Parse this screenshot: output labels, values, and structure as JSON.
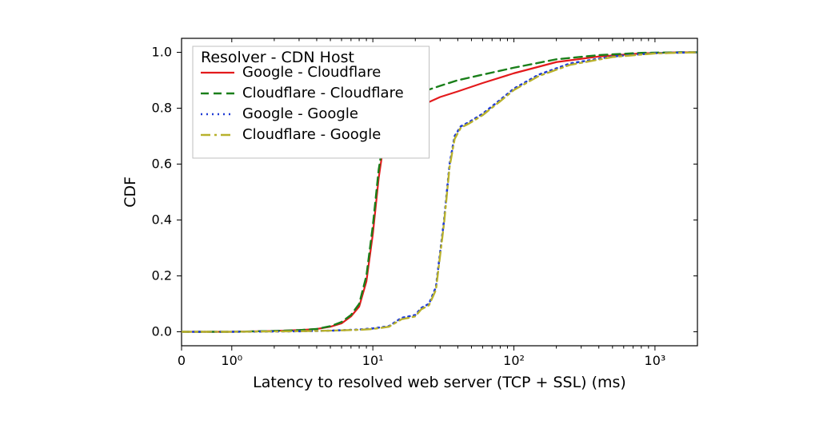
{
  "chart": {
    "type": "line-cdf",
    "background_color": "#ffffff",
    "plot_border_color": "#000000",
    "xaxis": {
      "label": "Latency to resolved web server (TCP + SSL) (ms)",
      "scale": "log",
      "lin_portion_end": 0.7,
      "log_min": 0.7,
      "log_max": 2000,
      "label_fontsize": 19,
      "tick_fontsize": 16,
      "major_ticks": [
        {
          "v": 0,
          "label": "0",
          "mode": "lin"
        },
        {
          "v": 1,
          "label": "10⁰",
          "mode": "log"
        },
        {
          "v": 10,
          "label": "10¹",
          "mode": "log"
        },
        {
          "v": 100,
          "label": "10²",
          "mode": "log"
        },
        {
          "v": 1000,
          "label": "10³",
          "mode": "log"
        }
      ],
      "minor_ticks_log": [
        2,
        3,
        4,
        5,
        6,
        7,
        8,
        9,
        20,
        30,
        40,
        50,
        60,
        70,
        80,
        90,
        200,
        300,
        400,
        500,
        600,
        700,
        800,
        900,
        2000
      ]
    },
    "yaxis": {
      "label": "CDF",
      "min": -0.05,
      "max": 1.05,
      "ticks": [
        0.0,
        0.2,
        0.4,
        0.6,
        0.8,
        1.0
      ],
      "tick_labels": [
        "0.0",
        "0.2",
        "0.4",
        "0.6",
        "0.8",
        "1.0"
      ],
      "label_fontsize": 19,
      "tick_fontsize": 16
    },
    "legend": {
      "title": "Resolver - CDN Host",
      "title_fontsize": 19,
      "item_fontsize": 18,
      "position": "upper-left",
      "frame_color": "#bfbfbf",
      "face_color": "#ffffff"
    },
    "series": [
      {
        "name": "Google - Cloudflare",
        "color": "#e31a1c",
        "linestyle": "solid",
        "linewidth": 2.2,
        "dash": null,
        "points": [
          [
            0.0,
            0.0
          ],
          [
            1,
            0.0
          ],
          [
            2,
            0.003
          ],
          [
            3,
            0.006
          ],
          [
            4,
            0.01
          ],
          [
            5,
            0.018
          ],
          [
            6,
            0.03
          ],
          [
            7,
            0.055
          ],
          [
            8,
            0.09
          ],
          [
            9,
            0.18
          ],
          [
            10,
            0.35
          ],
          [
            11,
            0.55
          ],
          [
            12,
            0.68
          ],
          [
            13,
            0.74
          ],
          [
            14,
            0.765
          ],
          [
            16,
            0.785
          ],
          [
            20,
            0.8
          ],
          [
            30,
            0.84
          ],
          [
            40,
            0.86
          ],
          [
            60,
            0.89
          ],
          [
            100,
            0.925
          ],
          [
            200,
            0.965
          ],
          [
            400,
            0.985
          ],
          [
            800,
            0.996
          ],
          [
            1500,
            1.0
          ],
          [
            2000,
            1.0
          ]
        ]
      },
      {
        "name": "Cloudflare - Cloudflare",
        "color": "#1a7f1a",
        "linestyle": "dashed",
        "linewidth": 2.4,
        "dash": "10,6",
        "points": [
          [
            0.0,
            0.0
          ],
          [
            1,
            0.0
          ],
          [
            2,
            0.003
          ],
          [
            3,
            0.006
          ],
          [
            4,
            0.01
          ],
          [
            5,
            0.02
          ],
          [
            6,
            0.035
          ],
          [
            7,
            0.06
          ],
          [
            8,
            0.1
          ],
          [
            9,
            0.2
          ],
          [
            10,
            0.38
          ],
          [
            11,
            0.58
          ],
          [
            12,
            0.7
          ],
          [
            13,
            0.77
          ],
          [
            14,
            0.8
          ],
          [
            16,
            0.825
          ],
          [
            20,
            0.85
          ],
          [
            30,
            0.88
          ],
          [
            40,
            0.9
          ],
          [
            60,
            0.92
          ],
          [
            100,
            0.945
          ],
          [
            200,
            0.975
          ],
          [
            400,
            0.99
          ],
          [
            800,
            0.998
          ],
          [
            1500,
            1.0
          ],
          [
            2000,
            1.0
          ]
        ]
      },
      {
        "name": "Google - Google",
        "color": "#1f3bd6",
        "linestyle": "dotted",
        "linewidth": 2.6,
        "dash": "2,5",
        "points": [
          [
            0.0,
            0.0
          ],
          [
            1,
            0.0
          ],
          [
            3,
            0.002
          ],
          [
            5,
            0.004
          ],
          [
            8,
            0.008
          ],
          [
            10,
            0.012
          ],
          [
            13,
            0.02
          ],
          [
            16,
            0.05
          ],
          [
            18,
            0.055
          ],
          [
            20,
            0.06
          ],
          [
            22,
            0.085
          ],
          [
            25,
            0.1
          ],
          [
            28,
            0.16
          ],
          [
            32,
            0.4
          ],
          [
            35,
            0.6
          ],
          [
            38,
            0.7
          ],
          [
            42,
            0.735
          ],
          [
            48,
            0.75
          ],
          [
            60,
            0.78
          ],
          [
            80,
            0.83
          ],
          [
            100,
            0.87
          ],
          [
            150,
            0.92
          ],
          [
            250,
            0.96
          ],
          [
            500,
            0.985
          ],
          [
            1000,
            0.997
          ],
          [
            2000,
            1.0
          ]
        ]
      },
      {
        "name": "Cloudflare - Google",
        "color": "#b8b12c",
        "linestyle": "dashed",
        "linewidth": 2.4,
        "dash": "12,5,3,5",
        "points": [
          [
            0.0,
            0.0
          ],
          [
            1,
            0.0
          ],
          [
            3,
            0.002
          ],
          [
            5,
            0.004
          ],
          [
            8,
            0.007
          ],
          [
            10,
            0.01
          ],
          [
            13,
            0.018
          ],
          [
            16,
            0.045
          ],
          [
            18,
            0.05
          ],
          [
            20,
            0.055
          ],
          [
            22,
            0.08
          ],
          [
            25,
            0.095
          ],
          [
            28,
            0.15
          ],
          [
            32,
            0.39
          ],
          [
            35,
            0.59
          ],
          [
            38,
            0.69
          ],
          [
            42,
            0.73
          ],
          [
            48,
            0.745
          ],
          [
            60,
            0.775
          ],
          [
            80,
            0.825
          ],
          [
            100,
            0.865
          ],
          [
            150,
            0.915
          ],
          [
            250,
            0.955
          ],
          [
            500,
            0.983
          ],
          [
            1000,
            0.996
          ],
          [
            2000,
            1.0
          ]
        ]
      }
    ]
  }
}
